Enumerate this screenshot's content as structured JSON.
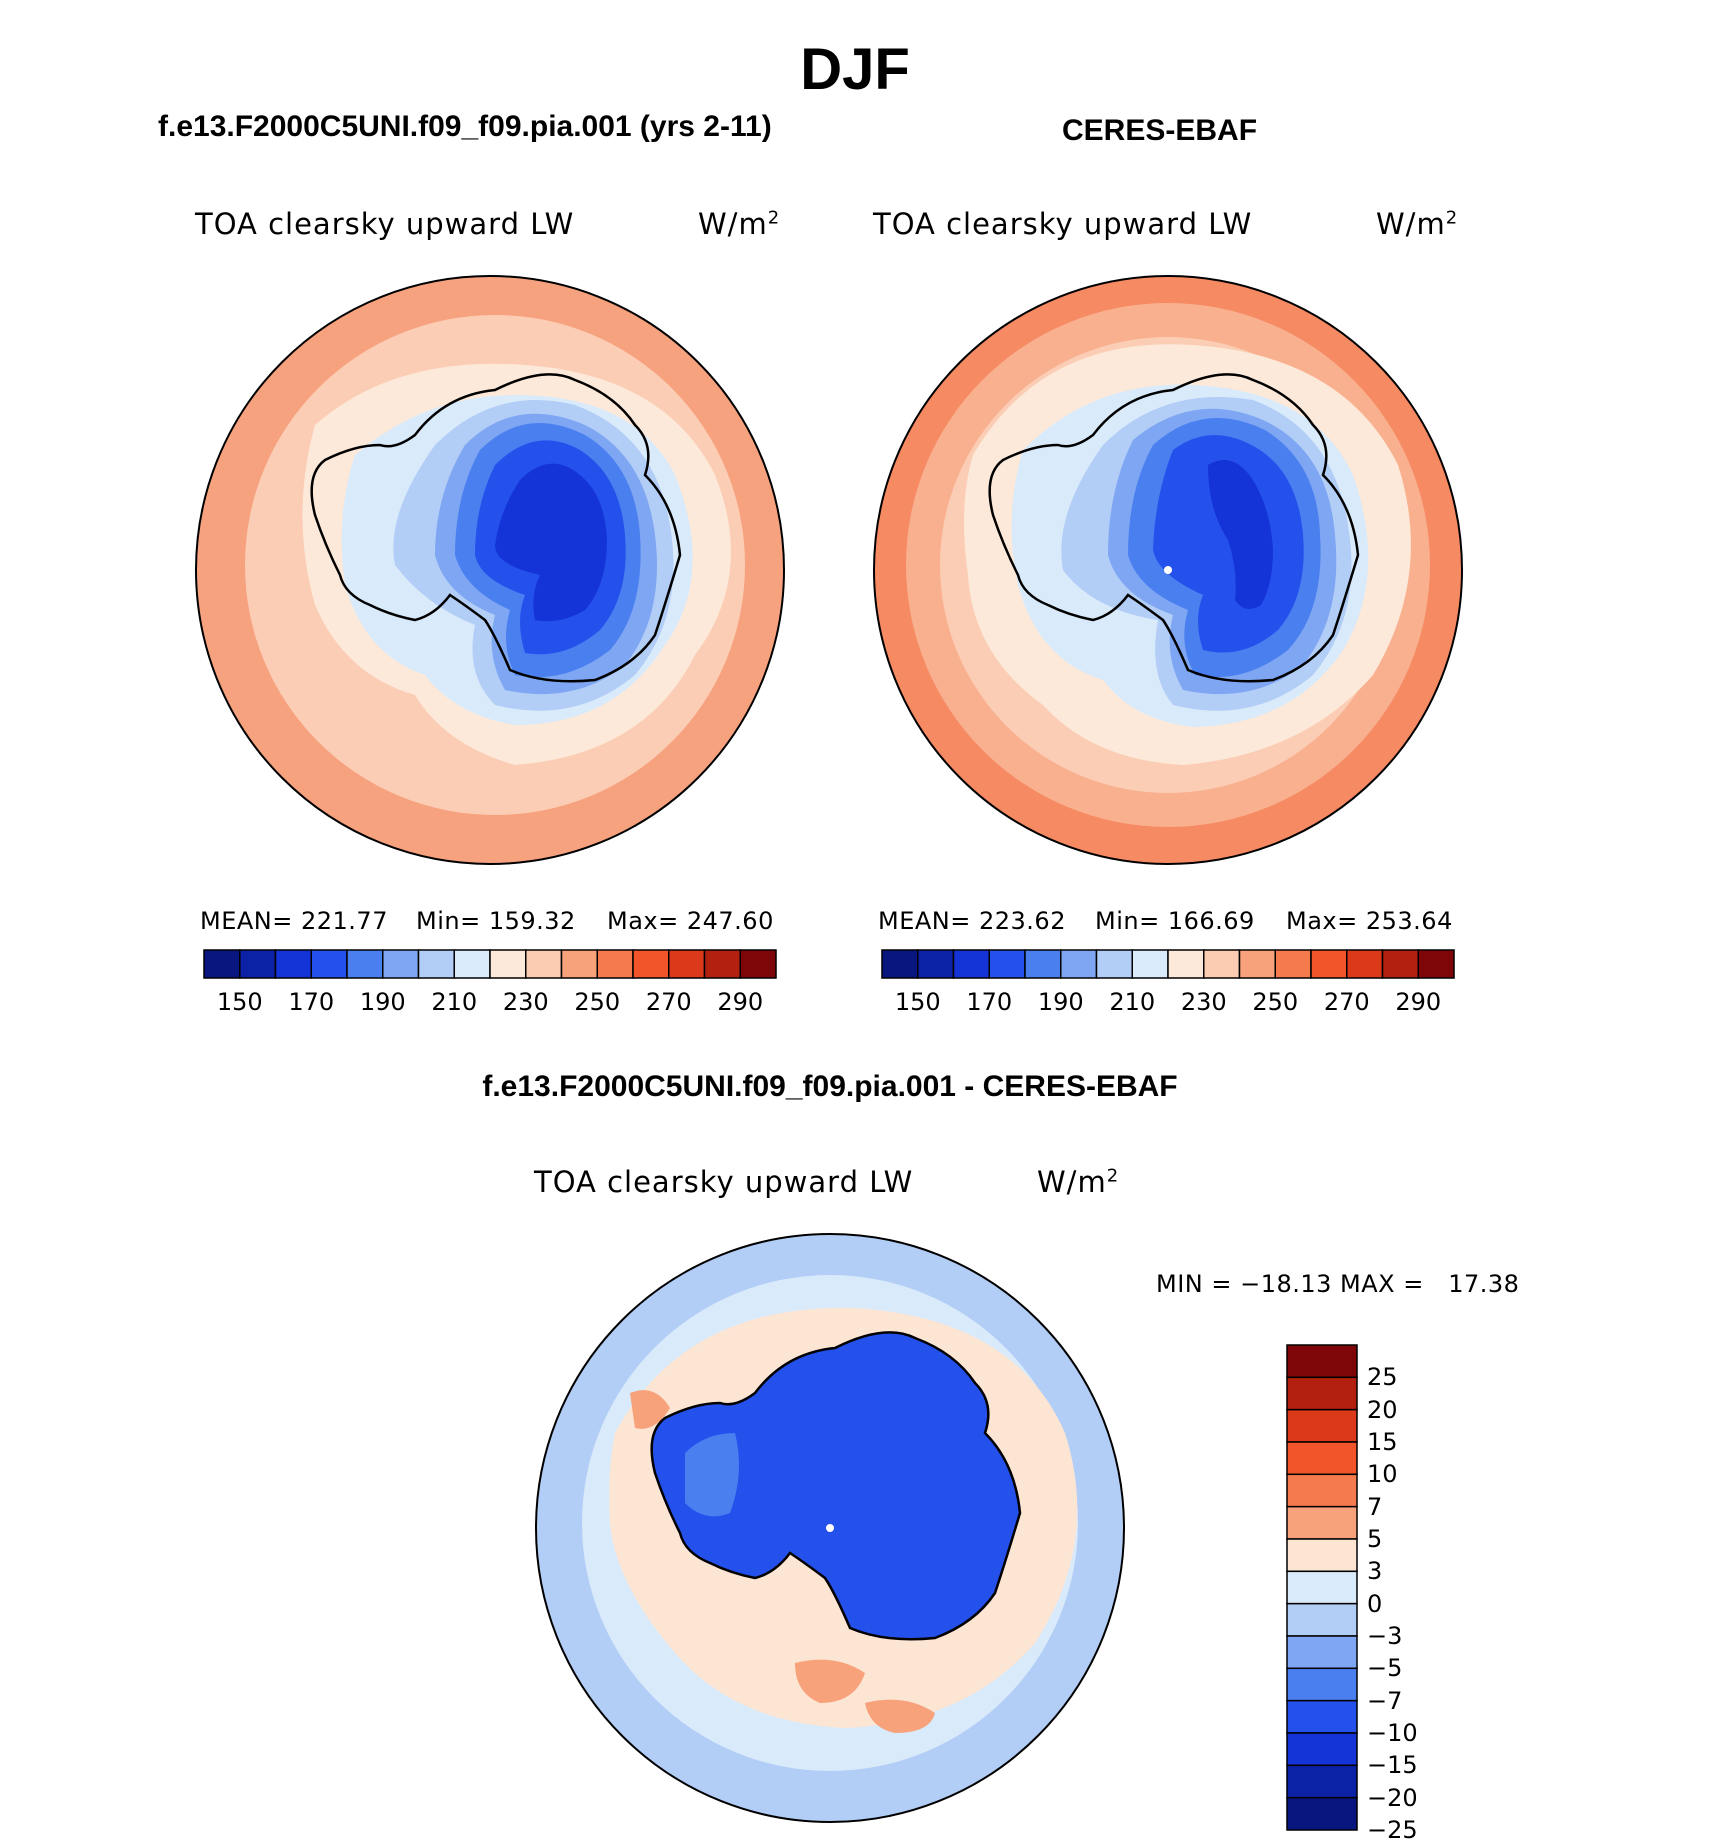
{
  "figure_title": "DJF",
  "panels": [
    {
      "case_title": "f.e13.F2000C5UNI.f09_f09.pia.001 (yrs 2-11)",
      "variable_label": "TOA clearsky upward LW",
      "units_label": "W/m",
      "units_exponent": "2",
      "stats": {
        "mean": "MEAN= 221.77",
        "min": "Min= 159.32",
        "max": "Max= 247.60"
      },
      "colorbar_ticks": [
        "150",
        "170",
        "190",
        "210",
        "230",
        "250",
        "270",
        "290"
      ]
    },
    {
      "case_title": "CERES-EBAF",
      "variable_label": "TOA clearsky upward LW",
      "units_label": "W/m",
      "units_exponent": "2",
      "stats": {
        "mean": "MEAN= 223.62",
        "min": "Min= 166.69",
        "max": "Max= 253.64"
      },
      "colorbar_ticks": [
        "150",
        "170",
        "190",
        "210",
        "230",
        "250",
        "270",
        "290"
      ]
    }
  ],
  "difference_panel": {
    "case_title": "f.e13.F2000C5UNI.f09_f09.pia.001 - CERES-EBAF",
    "variable_label": "TOA clearsky upward LW",
    "units_label": "W/m",
    "units_exponent": "2",
    "minmax_label": "MIN = −18.13 MAX =   17.38",
    "colorbar_ticks": [
      "25",
      "20",
      "15",
      "10",
      "7",
      "5",
      "3",
      "0",
      "−3",
      "−5",
      "−7",
      "−10",
      "−15",
      "−20",
      "−25"
    ]
  },
  "abs_palette": [
    "#0a1680",
    "#0b22a6",
    "#1534d8",
    "#2451ec",
    "#4a7ff0",
    "#7ea6f2",
    "#b2cdf6",
    "#d9eafa",
    "#fde9d9",
    "#fbcbb2",
    "#f8a27c",
    "#f57a4d",
    "#f2552a",
    "#dc381a",
    "#b32010",
    "#7f0608"
  ],
  "diff_palette": [
    "#7f0608",
    "#b32010",
    "#dc381a",
    "#f2552a",
    "#f57a4d",
    "#f8a27c",
    "#fde5d4",
    "#d9eafa",
    "#b2cdf6",
    "#7ea6f2",
    "#4a7ff0",
    "#2451ec",
    "#1534d8",
    "#0b22a6",
    "#0a1680"
  ],
  "map_colors": {
    "ocean_outer_model": "#f7a27f",
    "ocean_mid_model": "#fbcdb5",
    "sea_ice_model": "#fde9d9",
    "ocean_outer_obs": "#f68a63",
    "ocean_mid_obs": "#f9b08f",
    "sea_ice_obs": "#fbcdb5",
    "ice_edge": "#d9eafa",
    "coast_ice": "#b2cdf6",
    "plateau_1": "#7ea6f2",
    "plateau_2": "#4a7ff0",
    "plateau_3": "#2451ec",
    "plateau_4": "#1534d8",
    "diff_outer": "#b2cdf6",
    "diff_mid": "#d9eafa",
    "diff_ring": "#fde5d4",
    "diff_warm": "#f8a27c",
    "diff_land": "#2451ec"
  }
}
